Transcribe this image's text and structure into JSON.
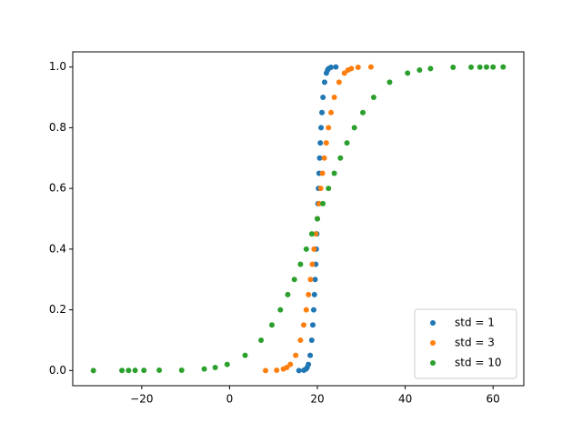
{
  "chart_data": {
    "type": "scatter",
    "xlim": [
      -35.7,
      67.0
    ],
    "ylim": [
      -0.05,
      1.05
    ],
    "xticks": [
      {
        "value": -20,
        "label": "−20"
      },
      0,
      20,
      40,
      60
    ],
    "yticks": [
      {
        "value": 0,
        "label": "0.0"
      },
      {
        "value": 0.2,
        "label": "0.2"
      },
      {
        "value": 0.4,
        "label": "0.4"
      },
      {
        "value": 0.6,
        "label": "0.6"
      },
      {
        "value": 0.8,
        "label": "0.8"
      },
      {
        "value": 1,
        "label": "1.0"
      }
    ],
    "legend": "lower right",
    "series": [
      {
        "name": "std = 1",
        "color": "#1f77b4",
        "x": [
          15.8,
          16.91,
          17.42,
          17.67,
          17.95,
          18.36,
          18.72,
          18.96,
          19.16,
          19.33,
          19.48,
          19.62,
          19.75,
          19.87,
          20,
          20.13,
          20.25,
          20.39,
          20.52,
          20.67,
          20.84,
          21.04,
          21.28,
          21.64,
          22.05,
          22.33,
          22.58,
          23.09,
          24.2
        ],
        "y": [
          0,
          0.001,
          0.005,
          0.01,
          0.02,
          0.05,
          0.1,
          0.15,
          0.2,
          0.25,
          0.3,
          0.35,
          0.4,
          0.45,
          0.5,
          0.55,
          0.6,
          0.65,
          0.7,
          0.75,
          0.8,
          0.85,
          0.9,
          0.95,
          0.98,
          0.99,
          0.995,
          0.999,
          1
        ]
      },
      {
        "name": "std = 3",
        "color": "#ff7f0e",
        "x": [
          8.2,
          10.73,
          12.27,
          13.02,
          13.84,
          15.07,
          16.15,
          16.89,
          17.47,
          17.98,
          18.43,
          18.85,
          19.24,
          19.62,
          20,
          20.38,
          20.76,
          21.16,
          21.57,
          22.02,
          22.53,
          23.11,
          23.85,
          24.94,
          26.16,
          26.98,
          27.73,
          29.27,
          32.2
        ],
        "y": [
          0,
          0.001,
          0.005,
          0.01,
          0.02,
          0.05,
          0.1,
          0.15,
          0.2,
          0.25,
          0.3,
          0.35,
          0.4,
          0.45,
          0.5,
          0.55,
          0.6,
          0.65,
          0.7,
          0.75,
          0.8,
          0.85,
          0.9,
          0.95,
          0.98,
          0.99,
          0.995,
          0.999,
          1
        ]
      },
      {
        "name": "std = 10",
        "color": "#2ca02c",
        "x": [
          -31,
          -24.5,
          -23,
          -21.5,
          -19.5,
          -16,
          -10.9,
          -5.76,
          -3.26,
          -0.54,
          3.55,
          7.18,
          9.64,
          11.58,
          13.26,
          14.76,
          16.15,
          17.47,
          18.74,
          20,
          21.26,
          22.53,
          23.85,
          25.24,
          26.74,
          28.42,
          30.36,
          32.82,
          36.45,
          40.54,
          43.26,
          45.76,
          50.9,
          55,
          57,
          58.5,
          60,
          62.3
        ],
        "y": [
          0,
          0.0002,
          0.0003,
          0.0004,
          0.0005,
          0.0008,
          0.001,
          0.005,
          0.01,
          0.02,
          0.05,
          0.1,
          0.15,
          0.2,
          0.25,
          0.3,
          0.35,
          0.4,
          0.45,
          0.5,
          0.55,
          0.6,
          0.65,
          0.7,
          0.75,
          0.8,
          0.85,
          0.9,
          0.95,
          0.98,
          0.99,
          0.995,
          0.999,
          0.9995,
          0.9996,
          0.9997,
          0.9998,
          1
        ]
      }
    ]
  }
}
